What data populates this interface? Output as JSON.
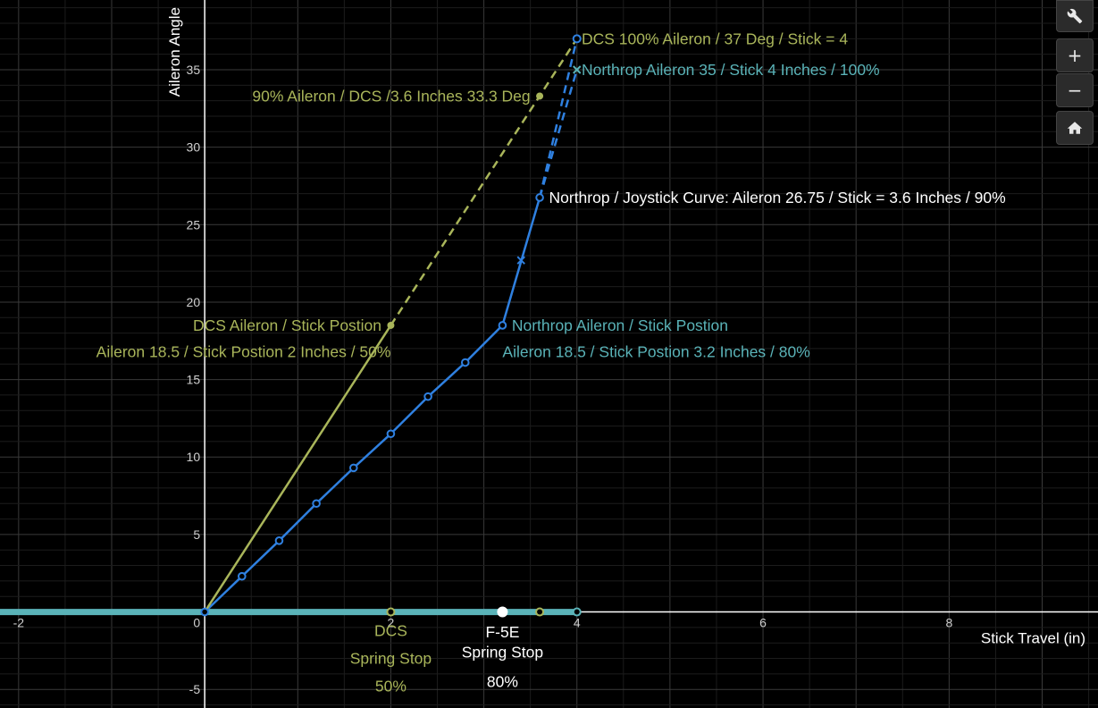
{
  "chart_data": {
    "type": "line",
    "xlabel": "Stick Travel (in)",
    "ylabel": "Aileron Angle",
    "xlim": [
      -2.2,
      9.6
    ],
    "ylim": [
      -6.2,
      39.5
    ],
    "x_ticks": [
      -2,
      2,
      4,
      6,
      8
    ],
    "x_tick_labels": [
      "-2",
      "2",
      "4",
      "6",
      "8"
    ],
    "y_ticks": [
      -5,
      5,
      10,
      15,
      20,
      25,
      30,
      35
    ],
    "y_tick_labels": [
      "-5",
      "5",
      "10",
      "15",
      "20",
      "25",
      "30",
      "35"
    ],
    "origin_label": "0",
    "grid": true,
    "series": [
      {
        "color": "#2f80e0",
        "style": "solid",
        "markers": "open-circle",
        "points": [
          [
            0,
            0
          ],
          [
            0.4,
            2.3
          ],
          [
            0.8,
            4.6
          ],
          [
            1.2,
            7.0
          ],
          [
            1.6,
            9.3
          ],
          [
            2.0,
            11.5
          ],
          [
            2.4,
            13.9
          ],
          [
            2.8,
            16.1
          ],
          [
            3.2,
            18.5
          ],
          [
            3.6,
            26.75
          ]
        ]
      },
      {
        "color": "#2f80e0",
        "style": "dashed",
        "markers": "none",
        "points": [
          [
            3.6,
            26.75
          ],
          [
            4.0,
            37.0
          ]
        ]
      },
      {
        "color": "#2f80e0",
        "style": "dashed",
        "markers": "none",
        "points": [
          [
            3.6,
            26.75
          ],
          [
            4.0,
            35.0
          ]
        ]
      },
      {
        "color": "#a9b55a",
        "style": "solid",
        "markers": "none",
        "points": [
          [
            0,
            0
          ],
          [
            2.0,
            18.5
          ]
        ]
      },
      {
        "color": "#a9b55a",
        "style": "dashed",
        "markers": "none",
        "points": [
          [
            2.0,
            18.5
          ],
          [
            4.0,
            37.0
          ]
        ]
      },
      {
        "color": "#5ab3b8",
        "style": "thick",
        "markers": "none",
        "points": [
          [
            -2.2,
            0
          ],
          [
            4.0,
            0
          ]
        ]
      }
    ],
    "points": [
      {
        "x": 3.6,
        "y": 33.3,
        "color": "#a9b55a",
        "marker": "dot"
      },
      {
        "x": 2.0,
        "y": 18.5,
        "color": "#a9b55a",
        "marker": "dot"
      },
      {
        "x": 4.0,
        "y": 37.0,
        "color": "#2f80e0",
        "marker": "open-circle"
      },
      {
        "x": 4.0,
        "y": 35.0,
        "color": "#5ab3b8",
        "marker": "cross"
      },
      {
        "x": 3.4,
        "y": 22.7,
        "color": "#2f80e0",
        "marker": "cross"
      },
      {
        "x": 2.0,
        "y": 0,
        "color": "#a9b55a",
        "marker": "ring"
      },
      {
        "x": 3.6,
        "y": 0,
        "color": "#a9b55a",
        "marker": "ring"
      },
      {
        "x": 4.0,
        "y": 0,
        "color": "#5ab3b8",
        "marker": "ring"
      },
      {
        "x": 3.2,
        "y": 0,
        "color": "#ffffff",
        "marker": "bigdot"
      }
    ],
    "annotations": [
      {
        "text": "DCS 100% Aileron / 37 Deg / Stick = 4",
        "color": "#a9b55a",
        "x": 4.05,
        "y": 37.0,
        "anchor": "start"
      },
      {
        "text": "Northrop Aileron 35 / Stick 4 Inches / 100%",
        "color": "#5ab3b8",
        "x": 4.05,
        "y": 35.0,
        "anchor": "start"
      },
      {
        "text": "90% Aileron / DCS /3.6 Inches 33.3 Deg",
        "color": "#a9b55a",
        "x": 3.5,
        "y": 33.3,
        "anchor": "end"
      },
      {
        "text": "Northrop / Joystick Curve: Aileron 26.75 / Stick = 3.6 Inches / 90%",
        "color": "#ffffff",
        "x": 3.7,
        "y": 26.75,
        "anchor": "start"
      },
      {
        "text": "DCS Aileron / Stick Postion",
        "color": "#a9b55a",
        "x": 1.9,
        "y": 18.5,
        "anchor": "end"
      },
      {
        "text": "Aileron 18.5 / Stick Postion 2 Inches / 50%",
        "color": "#a9b55a",
        "x": 2.0,
        "y": 16.8,
        "anchor": "end"
      },
      {
        "text": "Northrop Aileron / Stick Postion",
        "color": "#5ab3b8",
        "x": 3.3,
        "y": 18.5,
        "anchor": "start"
      },
      {
        "text": "Aileron 18.5  / Stick Postion 3.2 Inches / 80%",
        "color": "#5ab3b8",
        "x": 3.2,
        "y": 16.8,
        "anchor": "start"
      },
      {
        "text": "DCS",
        "color": "#a9b55a",
        "x": 2.0,
        "y": -1.2,
        "anchor": "middle"
      },
      {
        "text": "Spring Stop",
        "color": "#a9b55a",
        "x": 2.0,
        "y": -3.0,
        "anchor": "middle"
      },
      {
        "text": "50%",
        "color": "#a9b55a",
        "x": 2.0,
        "y": -4.8,
        "anchor": "middle"
      },
      {
        "text": "F-5E",
        "color": "#ffffff",
        "x": 3.2,
        "y": -1.3,
        "anchor": "middle"
      },
      {
        "text": "Spring Stop",
        "color": "#ffffff",
        "x": 3.2,
        "y": -2.6,
        "anchor": "middle"
      },
      {
        "text": "80%",
        "color": "#ffffff",
        "x": 3.2,
        "y": -4.5,
        "anchor": "middle"
      }
    ]
  },
  "controls": {
    "settings_icon": "wrench-icon",
    "zoom_in_label": "+",
    "zoom_out_label": "−",
    "home_icon": "home-icon"
  }
}
